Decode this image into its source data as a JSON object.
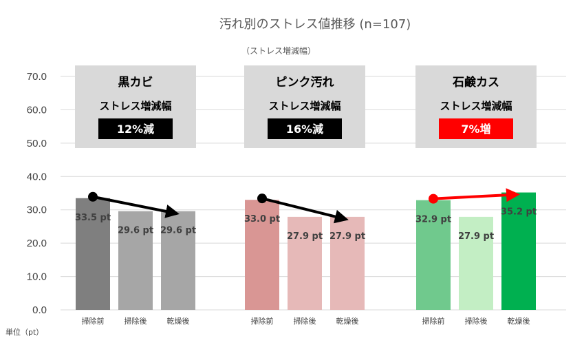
{
  "chart_data": {
    "type": "bar",
    "title": "汚れ別のストレス値推移 (n=107)",
    "subtitle": "（ストレス増減幅）",
    "ylabel": "単位（pt）",
    "ylim": [
      0,
      70
    ],
    "yticks": [
      "0.0",
      "10.0",
      "20.0",
      "30.0",
      "40.0",
      "50.0",
      "60.0",
      "70.0"
    ],
    "grid": true,
    "groups": [
      {
        "name": "黒カビ",
        "box_subtitle": "ストレス増減幅",
        "change_label": "12%減",
        "change_color": "#000000",
        "arrow_color": "#000000",
        "categories": [
          "掃除前",
          "掃除後",
          "乾燥後"
        ],
        "values": [
          33.5,
          29.6,
          29.6
        ],
        "labels": [
          "33.5 pt",
          "29.6 pt",
          "29.6 pt"
        ],
        "colors": [
          "#7f7f7f",
          "#a6a6a6",
          "#a6a6a6"
        ]
      },
      {
        "name": "ピンク汚れ",
        "box_subtitle": "ストレス増減幅",
        "change_label": "16%減",
        "change_color": "#000000",
        "arrow_color": "#000000",
        "categories": [
          "掃除前",
          "掃除後",
          "乾燥後"
        ],
        "values": [
          33.0,
          27.9,
          27.9
        ],
        "labels": [
          "33.0 pt",
          "27.9 pt",
          "27.9 pt"
        ],
        "colors": [
          "#d99694",
          "#e6b9b8",
          "#e6b9b8"
        ]
      },
      {
        "name": "石鹸カス",
        "box_subtitle": "ストレス増減幅",
        "change_label": "7%増",
        "change_color": "#ff0000",
        "arrow_color": "#ff0000",
        "categories": [
          "掃除前",
          "掃除後",
          "乾燥後"
        ],
        "values": [
          32.9,
          27.9,
          35.2
        ],
        "labels": [
          "32.9 pt",
          "27.9 pt",
          "35.2 pt"
        ],
        "colors": [
          "#70c98d",
          "#c3eec4",
          "#00b050"
        ]
      }
    ]
  },
  "colors": {
    "grid": "#d9d9d9",
    "box": "#d9d9d9"
  }
}
